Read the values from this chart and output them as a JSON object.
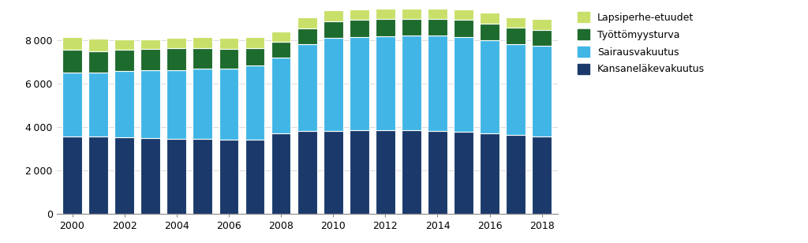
{
  "years": [
    2000,
    2001,
    2002,
    2003,
    2004,
    2005,
    2006,
    2007,
    2008,
    2009,
    2010,
    2011,
    2012,
    2013,
    2014,
    2015,
    2016,
    2017,
    2018
  ],
  "kansanelake": [
    3550,
    3540,
    3510,
    3490,
    3460,
    3440,
    3410,
    3420,
    3700,
    3820,
    3820,
    3840,
    3830,
    3830,
    3820,
    3780,
    3720,
    3620,
    3540
  ],
  "sairausvakuutus": [
    2950,
    2960,
    3060,
    3100,
    3150,
    3230,
    3280,
    3400,
    3480,
    3980,
    4280,
    4300,
    4340,
    4380,
    4400,
    4350,
    4260,
    4200,
    4200
  ],
  "tyottomyysturva": [
    1050,
    980,
    970,
    980,
    1000,
    950,
    900,
    800,
    730,
    730,
    770,
    780,
    780,
    750,
    740,
    780,
    770,
    740,
    730
  ],
  "lapsiperhe": [
    580,
    560,
    490,
    450,
    500,
    510,
    510,
    510,
    490,
    490,
    490,
    490,
    500,
    490,
    490,
    490,
    490,
    490,
    490
  ],
  "color_kansanelake": "#1B3A6B",
  "color_sairausvakuutus": "#41B6E6",
  "color_tyottomyysturva": "#1E6B2E",
  "color_lapsiperhe": "#C8E06A",
  "ylim": [
    0,
    9500
  ],
  "yticks": [
    0,
    2000,
    4000,
    6000,
    8000
  ],
  "background_color": "#FFFFFF",
  "bar_width": 0.75,
  "edge_color": "#FFFFFF"
}
